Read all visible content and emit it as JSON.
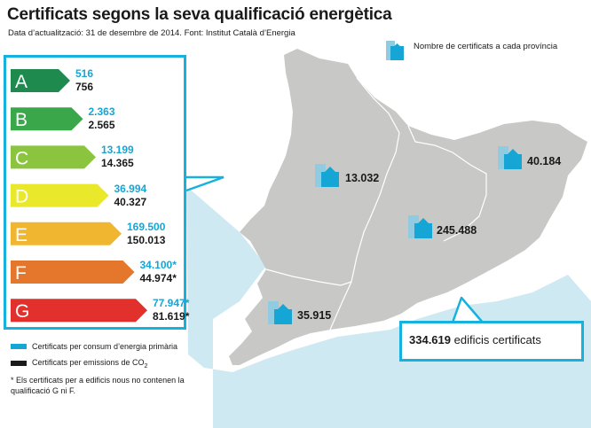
{
  "title": "Certificats segons la seva qualificació energètica",
  "subtitle": "Data d’actualització: 31 de desembre de 2014. Font: Institut Català d’Energia",
  "map_legend": "Nombre de certificats a cada província",
  "colors": {
    "accent": "#16b1dc",
    "primary_energy": "#16a6d6",
    "emissions": "#1a1a1a",
    "map_land": "#c8c8c6",
    "sea": "#cfe9f3",
    "A": "#1e8a4e",
    "B": "#3aa84a",
    "C": "#8bc53f",
    "D": "#e9e82a",
    "E": "#f1b630",
    "F": "#e5772c",
    "G": "#e2312d"
  },
  "chart_data": {
    "type": "table",
    "ratings": [
      {
        "grade": "A",
        "primary_energy": "516",
        "emissions": "756"
      },
      {
        "grade": "B",
        "primary_energy": "2.363",
        "emissions": "2.565"
      },
      {
        "grade": "C",
        "primary_energy": "13.199",
        "emissions": "14.365"
      },
      {
        "grade": "D",
        "primary_energy": "36.994",
        "emissions": "40.327"
      },
      {
        "grade": "E",
        "primary_energy": "169.500",
        "emissions": "150.013"
      },
      {
        "grade": "F",
        "primary_energy": "34.100*",
        "emissions": "44.974*"
      },
      {
        "grade": "G",
        "primary_energy": "77.947*",
        "emissions": "81.619*"
      }
    ],
    "provinces": [
      {
        "value": "40.184"
      },
      {
        "value": "13.032"
      },
      {
        "value": "245.488"
      },
      {
        "value": "35.915"
      }
    ],
    "total": {
      "value": "334.619",
      "label": "edificis certificats"
    }
  },
  "legend": {
    "primary": "Certificats per consum d’energia primària",
    "emissions_prefix": "Certificats per emissions de CO",
    "emissions_sub": "2"
  },
  "note": "* Els certificats per a edificis nous no contenen la qualificació G ni F."
}
